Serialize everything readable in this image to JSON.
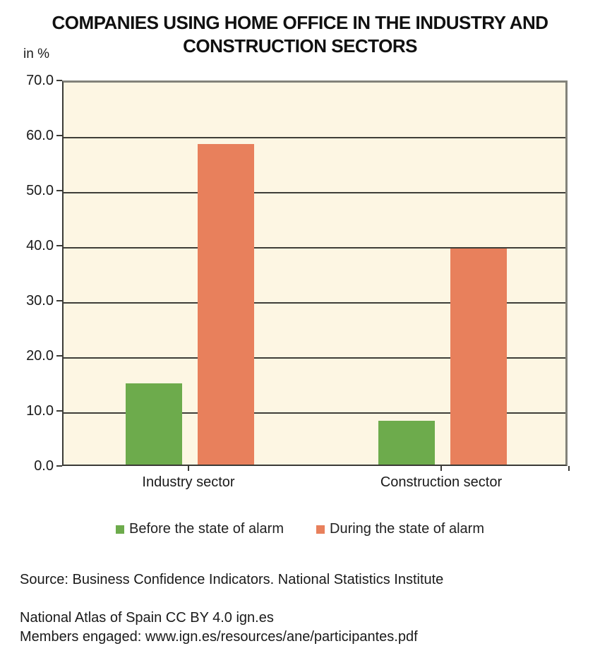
{
  "page": {
    "background": "#ffffff"
  },
  "chart_data": {
    "type": "bar",
    "title": "COMPANIES USING HOME OFFICE IN THE INDUSTRY AND CONSTRUCTION SECTORS",
    "unit_label": "in %",
    "categories": [
      "Industry sector",
      "Construction sector"
    ],
    "series": [
      {
        "name": "Before the state of alarm",
        "color": "#6DAB4C",
        "values": [
          14.7,
          7.9
        ]
      },
      {
        "name": "During the state of alarm",
        "color": "#E8805C",
        "values": [
          58.2,
          39.2
        ]
      }
    ],
    "ylim": [
      0,
      70
    ],
    "ytick_step": 10,
    "ytick_labels": [
      "0.0",
      "10.0",
      "20.0",
      "30.0",
      "40.0",
      "50.0",
      "60.0",
      "70.0"
    ],
    "grid": true,
    "legend_position": "bottom",
    "plot_background": "#FDF6E3",
    "gridline_color": "#3E3E38",
    "axis_color": "#3A3A36",
    "outer_border_color": "#82827A"
  },
  "footer": {
    "source": "Source: Business Confidence Indicators. National Statistics Institute",
    "atlas": "National Atlas of Spain CC BY 4.0 ign.es",
    "members": "Members engaged: www.ign.es/resources/ane/participantes.pdf"
  }
}
